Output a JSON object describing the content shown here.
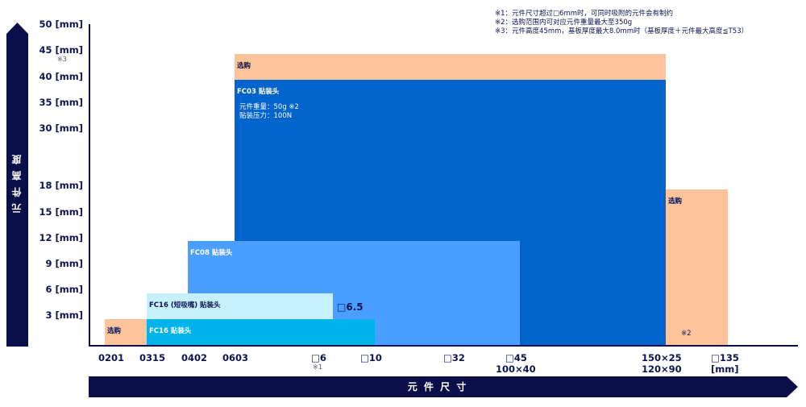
{
  "notes": [
    "※1：元件尺寸超过□6mm时，可同时吸附的元件会有制约",
    "※2：选购范围内可对应元件重量最大至350g",
    "※3：元件高度45mm，基板厚度最大8.0mm时（基板厚度＋元件最大高度≦T53）"
  ],
  "y_axis": {
    "title": "元 件 高 度",
    "ticks": [
      "50 [mm]",
      "45 [mm]",
      "40 [mm]",
      "35 [mm]",
      "30 [mm]",
      "18 [mm]",
      "15 [mm]",
      "12 [mm]",
      "9 [mm]",
      "6 [mm]",
      "3 [mm]"
    ],
    "note_45": "※3"
  },
  "x_axis": {
    "title": "元 件 尺 寸",
    "ticks": [
      "0201",
      "0315",
      "0402",
      "0603",
      "□6",
      "□10",
      "□32",
      "□45",
      "150×25",
      "□135"
    ],
    "sub": {
      "n1": "※1",
      "s45": "100×40",
      "s150": "120×90",
      "unit": "[mm]"
    }
  },
  "regions": {
    "opt_small": "选购",
    "fc16": "FC16 贴装头",
    "fc16_short": "FC16 (短吸嘴) 贴装头",
    "fc16_short_size": "□6.5",
    "fc08": "FC08 贴装头",
    "opt_top": "选购",
    "fc03": "FC03 贴装头",
    "fc03_weight": "元件重量：50g ※2",
    "fc03_force": "贴装压力：100N",
    "opt_right": "选购",
    "opt_right_note": "※2"
  },
  "colors": {
    "navy": "#0a0f4a",
    "orange": "#fdc49c",
    "fc16": "#00b4eb",
    "fc16_short": "#c6f0fc",
    "fc08": "#4a9eff",
    "fc03": "#0064cc"
  }
}
